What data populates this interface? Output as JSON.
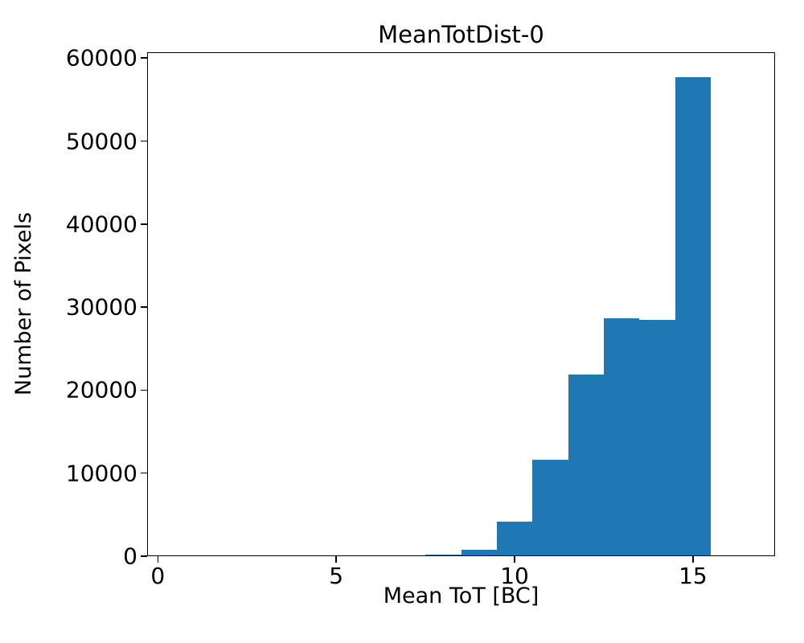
{
  "figure": {
    "title": "MeanTotDist-0",
    "xlabel": "Mean ToT [BC]",
    "ylabel": "Number of Pixels"
  },
  "chart_data": {
    "type": "bar",
    "subtype": "histogram",
    "title": "MeanTotDist-0",
    "xlabel": "Mean ToT [BC]",
    "ylabel": "Number of Pixels",
    "bin_edges": [
      7.5,
      8.5,
      9.5,
      10.5,
      11.5,
      12.5,
      13.5,
      14.5,
      15.5
    ],
    "counts": [
      150,
      800,
      4200,
      11600,
      21900,
      28700,
      28500,
      57700
    ],
    "xlim": [
      -0.3,
      17.3
    ],
    "ylim": [
      0,
      60700
    ],
    "x_ticks": [
      0,
      5,
      10,
      15
    ],
    "y_ticks": [
      0,
      10000,
      20000,
      30000,
      40000,
      50000,
      60000
    ],
    "bar_color": "#1f77b4",
    "axis_color": "#000000",
    "background_color": "#ffffff",
    "grid": false,
    "legend": null
  }
}
